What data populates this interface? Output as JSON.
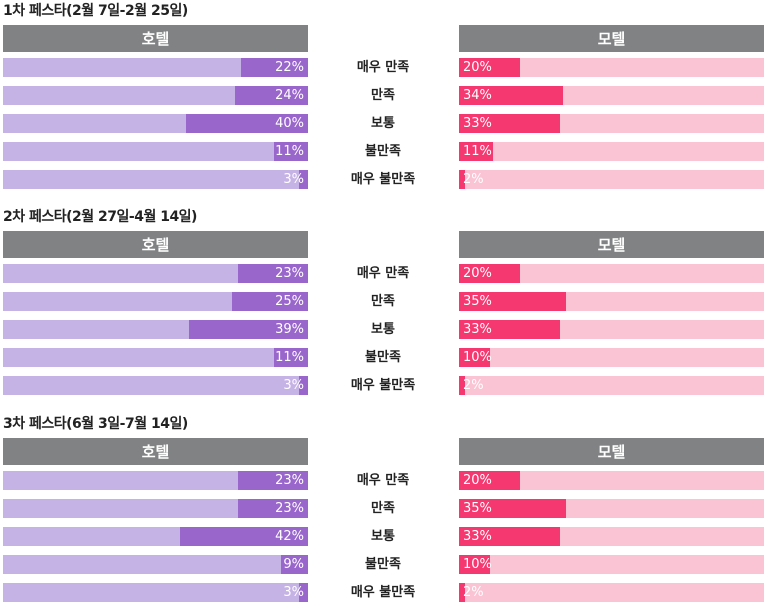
{
  "chart_data": {
    "type": "bar",
    "orientation": "horizontal",
    "categories": [
      "매우 만족",
      "만족",
      "보통",
      "불만족",
      "매우 불만족"
    ],
    "xlim": [
      0,
      100
    ],
    "unit": "%",
    "colors": {
      "hotel_track": "#c6b3e6",
      "hotel_fill": "#9966cc",
      "motel_track": "#fbc4d4",
      "motel_fill": "#f5386f",
      "header": "#808283"
    },
    "panels": [
      {
        "title": "1차 페스타(2월 7일-2월 25일)",
        "series": [
          {
            "name": "호텔",
            "values": [
              22,
              24,
              40,
              11,
              3
            ],
            "labels": [
              "22%",
              "24%",
              "40%",
              "11%",
              "3%"
            ]
          },
          {
            "name": "모텔",
            "values": [
              20,
              34,
              33,
              11,
              2
            ],
            "labels": [
              "20%",
              "34%",
              "33%",
              "11%",
              "2%"
            ]
          }
        ]
      },
      {
        "title": "2차 페스타(2월 27일-4월 14일)",
        "series": [
          {
            "name": "호텔",
            "values": [
              23,
              25,
              39,
              11,
              3
            ],
            "labels": [
              "23%",
              "25%",
              "39%",
              "11%",
              "3%"
            ]
          },
          {
            "name": "모텔",
            "values": [
              20,
              35,
              33,
              10,
              2
            ],
            "labels": [
              "20%",
              "35%",
              "33%",
              "10%",
              "2%"
            ]
          }
        ]
      },
      {
        "title": "3차 페스타(6월 3일-7월 14일)",
        "series": [
          {
            "name": "호텔",
            "values": [
              23,
              23,
              42,
              9,
              3
            ],
            "labels": [
              "23%",
              "23%",
              "42%",
              "9%",
              "3%"
            ]
          },
          {
            "name": "모텔",
            "values": [
              20,
              35,
              33,
              10,
              2
            ],
            "labels": [
              "20%",
              "35%",
              "33%",
              "10%",
              "2%"
            ]
          }
        ]
      }
    ]
  }
}
